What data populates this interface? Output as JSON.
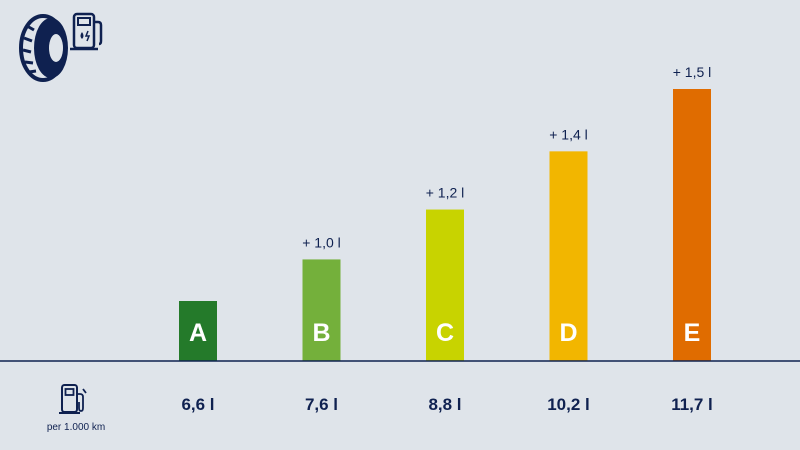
{
  "colors": {
    "background": "#dfe4ea",
    "ink": "#0f2150"
  },
  "header": {
    "icons": [
      "tire-icon",
      "fuel-pump-icon"
    ]
  },
  "footer": {
    "icon": "fuel-pump-icon",
    "unit_label": "per 1.000 km"
  },
  "chart_data": {
    "type": "bar",
    "categories": [
      "A",
      "B",
      "C",
      "D",
      "E"
    ],
    "values": [
      6.6,
      7.6,
      8.8,
      10.2,
      11.7
    ],
    "value_labels": [
      "6,6 l",
      "7,6 l",
      "8,8 l",
      "10,2 l",
      "11,7 l"
    ],
    "increment_labels": [
      "",
      "+ 1,0 l",
      "+ 1,2 l",
      "+ 1,4 l",
      "+ 1,5 l"
    ],
    "bar_colors": [
      "#247a2a",
      "#74b03b",
      "#c8d300",
      "#f2b600",
      "#e06c00"
    ],
    "title": "",
    "xlabel": "",
    "ylabel": "",
    "grid": false,
    "legend": "none"
  }
}
